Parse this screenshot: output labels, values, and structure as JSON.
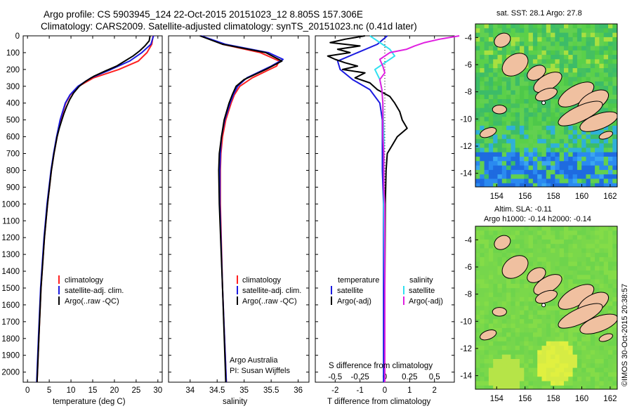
{
  "header": {
    "line1": "Argo profile: CS 5903945_124 22-Oct-2015 20151023_12 8.805S 157.306E",
    "line2": "Climatology: CARS2009. Satellite-adjusted climatology: synTS_20151023.nc (0.41d later)"
  },
  "credit": "©IMOS 30-Oct-2015 20:38:57",
  "colors": {
    "clim": "#ff2020",
    "sat": "#1a1ae0",
    "argo": "#000000",
    "sat_sal": "#30e0f0",
    "argo_sal": "#e020e0",
    "land": "#f0c0a0"
  },
  "depth_ticks": [
    "0",
    "100",
    "200",
    "300",
    "400",
    "500",
    "600",
    "700",
    "800",
    "900",
    "1000",
    "1100",
    "1200",
    "1300",
    "1400",
    "1500",
    "1600",
    "1700",
    "1800",
    "1900",
    "2000"
  ],
  "chart_data": [
    {
      "type": "line",
      "id": "temperature",
      "xlabel": "temperature (deg C)",
      "ylabel": "depth",
      "xlim": [
        -1,
        31
      ],
      "ylim": [
        2060,
        0
      ],
      "xticks": [
        "0",
        "5",
        "10",
        "15",
        "20",
        "25",
        "30"
      ],
      "legend": {
        "clim": "climatology",
        "sat": "satellite-adj. clim.",
        "argo": "Argo(..raw -QC)"
      },
      "series": [
        {
          "name": "climatology",
          "color": "#ff2020",
          "depth": [
            0,
            50,
            100,
            150,
            200,
            250,
            300,
            350,
            400,
            500,
            600,
            700,
            800,
            1000,
            1200,
            1500,
            1800,
            2060
          ],
          "values": [
            28.9,
            28.6,
            27.5,
            25.5,
            21.0,
            15.2,
            11.8,
            9.9,
            8.8,
            7.6,
            6.8,
            6.1,
            5.5,
            4.6,
            3.9,
            3.1,
            2.6,
            2.2
          ]
        },
        {
          "name": "satellite-adj. clim.",
          "color": "#1a1ae0",
          "depth": [
            0,
            50,
            100,
            150,
            200,
            250,
            300,
            350,
            400,
            500,
            600,
            700,
            800,
            1000,
            1200,
            1500,
            1800,
            2060
          ],
          "values": [
            29.0,
            28.4,
            26.3,
            23.5,
            19.2,
            14.6,
            11.6,
            9.8,
            8.7,
            7.5,
            6.7,
            6.0,
            5.4,
            4.5,
            3.8,
            3.0,
            2.5,
            2.1
          ]
        },
        {
          "name": "Argo",
          "color": "#000000",
          "depth": [
            0,
            30,
            60,
            90,
            120,
            150,
            180,
            210,
            240,
            270,
            300,
            340,
            380,
            420,
            460,
            500,
            550,
            600,
            700,
            800,
            1000,
            1200,
            1500,
            1800,
            2060
          ],
          "values": [
            28.2,
            28.0,
            27.0,
            25.8,
            24.3,
            22.4,
            20.5,
            17.8,
            15.3,
            13.4,
            11.9,
            10.6,
            9.7,
            9.0,
            8.4,
            7.9,
            7.3,
            6.8,
            6.1,
            5.5,
            4.6,
            3.9,
            3.1,
            2.6,
            2.2
          ]
        }
      ]
    },
    {
      "type": "line",
      "id": "salinity",
      "xlabel": "salinity",
      "ylabel": "depth",
      "xlim": [
        33.6,
        36.2
      ],
      "ylim": [
        2060,
        0
      ],
      "xticks": [
        "34",
        "34.5",
        "35",
        "35.5",
        "36"
      ],
      "legend": {
        "clim": "climatology",
        "sat": "satellite-adj. clim.",
        "argo": "Argo(..raw -QC)"
      },
      "annotation": [
        "Argo Australia",
        "PI: Susan Wijffels"
      ],
      "series": [
        {
          "name": "climatology",
          "color": "#ff2020",
          "depth": [
            0,
            50,
            100,
            150,
            180,
            250,
            300,
            350,
            400,
            500,
            600,
            700,
            800,
            1000,
            1500,
            2060
          ],
          "values": [
            34.2,
            34.6,
            35.3,
            35.65,
            35.6,
            35.15,
            34.92,
            34.82,
            34.76,
            34.66,
            34.6,
            34.57,
            34.56,
            34.56,
            34.6,
            34.67
          ]
        },
        {
          "name": "satellite-adj. clim.",
          "color": "#1a1ae0",
          "depth": [
            0,
            50,
            100,
            140,
            180,
            250,
            300,
            350,
            400,
            500,
            600,
            700,
            800,
            1000,
            1500,
            2060
          ],
          "values": [
            34.2,
            34.65,
            35.45,
            35.72,
            35.5,
            35.05,
            34.88,
            34.8,
            34.74,
            34.64,
            34.58,
            34.56,
            34.55,
            34.55,
            34.6,
            34.67
          ]
        },
        {
          "name": "Argo",
          "color": "#000000",
          "depth": [
            0,
            50,
            100,
            150,
            200,
            260,
            300,
            350,
            400,
            500,
            600,
            700,
            800,
            1000,
            1500,
            2060
          ],
          "values": [
            34.18,
            34.6,
            35.4,
            35.7,
            35.4,
            35.0,
            34.85,
            34.78,
            34.72,
            34.63,
            34.58,
            34.54,
            34.53,
            34.54,
            34.6,
            34.66
          ]
        }
      ]
    },
    {
      "type": "line",
      "id": "difference",
      "xlabel_top": "S difference from climatology",
      "xlabel": "T difference from climatology",
      "s_ticks": [
        "-0.5",
        "-0.25",
        "0",
        "0.25",
        "0.5"
      ],
      "t_ticks": [
        "-2",
        "-1",
        "0",
        "1",
        "2"
      ],
      "xlim_T": [
        -2.8,
        2.8
      ],
      "ylim": [
        2060,
        0
      ],
      "legend": {
        "temp_head": "temperature",
        "sal_head": "salinity",
        "t_sat": "satellite",
        "t_argo": "Argo(-adj)",
        "s_sat": "satellite",
        "s_argo": "Argo(-adj)"
      },
      "series": [
        {
          "name": "T satellite",
          "color": "#1a1ae0",
          "depth": [
            0,
            50,
            100,
            150,
            200,
            260,
            320,
            400,
            500,
            600,
            700,
            800,
            1000,
            1500,
            2060
          ],
          "values": [
            0.1,
            -0.3,
            -1.1,
            -1.9,
            -1.8,
            -1.3,
            -0.6,
            -0.2,
            -0.1,
            -0.1,
            -0.1,
            -0.1,
            -0.05,
            -0.05,
            -0.05
          ]
        },
        {
          "name": "T Argo(-adj)",
          "color": "#000000",
          "depth": [
            0,
            20,
            40,
            60,
            80,
            100,
            120,
            140,
            160,
            180,
            200,
            220,
            250,
            280,
            320,
            360,
            400,
            450,
            500,
            550,
            600,
            650,
            700,
            800,
            1000,
            1500,
            2060
          ],
          "values": [
            -0.8,
            -1.6,
            -2.2,
            -1.0,
            -1.9,
            -1.4,
            -2.3,
            -2.0,
            -1.6,
            -1.1,
            -1.7,
            -0.8,
            -1.2,
            -0.6,
            -0.3,
            0.2,
            0.4,
            0.6,
            0.7,
            0.9,
            0.5,
            0.3,
            0.1,
            0.05,
            0.02,
            0.0,
            0.0
          ]
        },
        {
          "name": "S satellite",
          "color": "#30e0f0",
          "depth": [
            0,
            40,
            80,
            120,
            160,
            200,
            260,
            320,
            400,
            600,
            800,
            1000,
            1500,
            2060
          ],
          "values": [
            -0.15,
            -0.05,
            0.05,
            0.1,
            0.0,
            -0.1,
            -0.05,
            -0.03,
            -0.02,
            -0.01,
            -0.01,
            -0.01,
            0.0,
            0.0
          ]
        },
        {
          "name": "S Argo(-adj)",
          "color": "#e020e0",
          "depth": [
            0,
            20,
            40,
            60,
            80,
            100,
            140,
            180,
            220,
            260,
            320,
            400,
            500,
            600,
            700,
            800,
            900,
            1000,
            1500,
            2060
          ],
          "values": [
            0.75,
            0.55,
            0.4,
            0.3,
            0.22,
            0.05,
            -0.05,
            -0.02,
            0.0,
            -0.05,
            -0.03,
            -0.02,
            -0.02,
            -0.02,
            -0.01,
            -0.01,
            -0.01,
            0.0,
            0.0,
            0.0
          ]
        }
      ]
    },
    {
      "type": "heatmap",
      "id": "sst_map",
      "title": "sat. SST: 28.1 Argo: 27.8",
      "xticks": [
        "154",
        "156",
        "158",
        "160",
        "162"
      ],
      "yticks": [
        "-4",
        "-6",
        "-8",
        "-10",
        "-12",
        "-14"
      ],
      "lon_range": [
        152.5,
        162.5
      ],
      "lat_range": [
        -15,
        -3
      ],
      "argo_position": [
        157.306,
        -8.805
      ]
    },
    {
      "type": "heatmap",
      "id": "sla_map",
      "title": "Altim. SLA: -0.11",
      "subtitle": "Argo h1000: -0.14 h2000: -0.14",
      "xticks": [
        "154",
        "156",
        "158",
        "160",
        "162"
      ],
      "yticks": [
        "-4",
        "-6",
        "-8",
        "-10",
        "-12",
        "-14"
      ],
      "lon_range": [
        152.5,
        162.5
      ],
      "lat_range": [
        -15,
        -3
      ],
      "argo_position": [
        157.306,
        -8.805
      ]
    }
  ]
}
